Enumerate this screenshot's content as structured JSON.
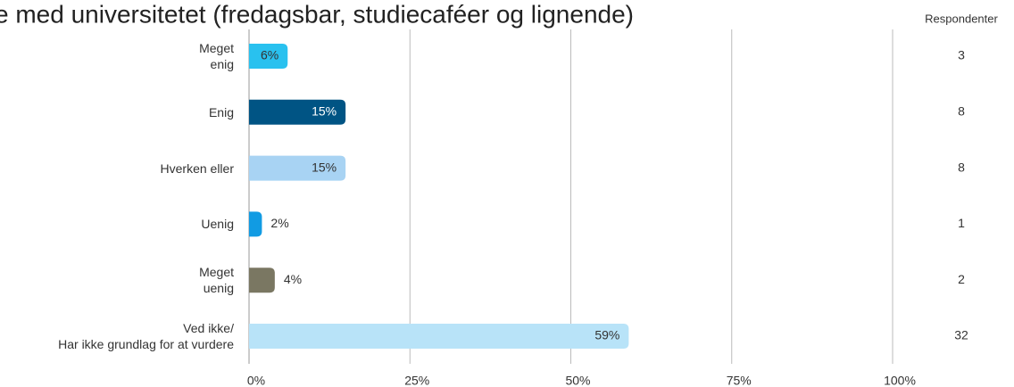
{
  "chart_data": {
    "type": "bar",
    "orientation": "horizontal",
    "title": "e med universitetet (fredagsbar, studiecaféer og lignende)",
    "categories": [
      "Meget\nenig",
      "Enig",
      "Hverken eller",
      "Uenig",
      "Meget\nuenig",
      "Ved ikke/\nHar ikke grundlag for at vurdere"
    ],
    "values": [
      6,
      15,
      15,
      2,
      4,
      59
    ],
    "value_labels": [
      "6%",
      "15%",
      "15%",
      "2%",
      "4%",
      "59%"
    ],
    "colors": [
      "#29c1ef",
      "#005484",
      "#a8d3f3",
      "#119be3",
      "#7a7762",
      "#b8e3f8"
    ],
    "xlim": [
      0,
      100
    ],
    "xticks": [
      {
        "value": 0,
        "label": "0%"
      },
      {
        "value": 25,
        "label": "25%"
      },
      {
        "value": 50,
        "label": "50%"
      },
      {
        "value": 75,
        "label": "75%"
      },
      {
        "value": 100,
        "label": "100%"
      }
    ],
    "grid": true,
    "respondents": {
      "title": "Respondenter",
      "values": [
        3,
        8,
        8,
        1,
        2,
        32
      ]
    }
  }
}
